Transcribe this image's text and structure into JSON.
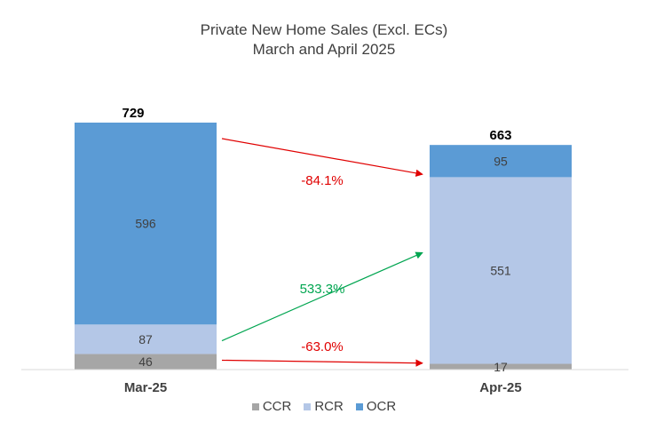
{
  "chart_data": {
    "type": "bar",
    "stacked": true,
    "title": "Private New Home Sales (Excl. ECs)",
    "subtitle": "March and April 2025",
    "categories": [
      "Mar-25",
      "Apr-25"
    ],
    "series": [
      {
        "name": "CCR",
        "values": [
          46,
          17
        ],
        "color": "#a6a6a6"
      },
      {
        "name": "RCR",
        "values": [
          87,
          551
        ],
        "color": "#b4c7e7"
      },
      {
        "name": "OCR",
        "values": [
          596,
          95
        ],
        "color": "#5b9bd5"
      }
    ],
    "totals": [
      729,
      663
    ],
    "changes": [
      {
        "series": "OCR",
        "label": "-84.1%",
        "color": "#e00000"
      },
      {
        "series": "RCR",
        "label": "533.3%",
        "color": "#00a550"
      },
      {
        "series": "CCR",
        "label": "-63.0%",
        "color": "#e00000"
      }
    ],
    "ylim": [
      0,
      729
    ],
    "grid": false,
    "legend_position": "bottom"
  }
}
